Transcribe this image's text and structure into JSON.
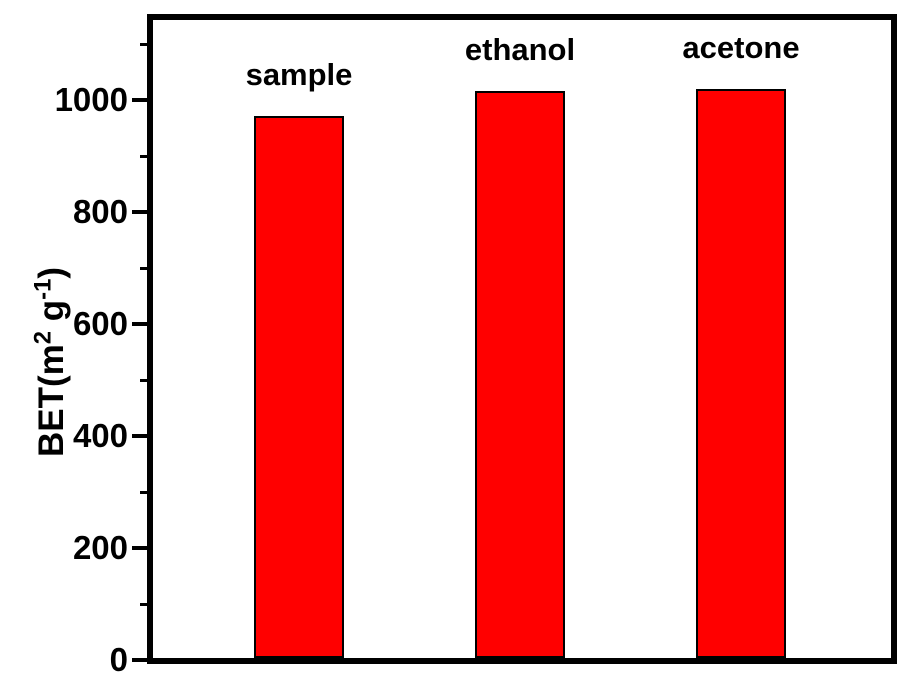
{
  "chart_data": {
    "type": "bar",
    "title": "",
    "xlabel": "",
    "ylabel": "BET(m2 g-1)",
    "ylabel_parts": [
      {
        "text": "BET(m",
        "sup": false
      },
      {
        "text": "2",
        "sup": true
      },
      {
        "text": " g",
        "sup": false
      },
      {
        "text": "-1",
        "sup": true
      },
      {
        "text": ")",
        "sup": false
      }
    ],
    "categories": [
      "sample",
      "ethanol",
      "acetone"
    ],
    "values": [
      968,
      1012,
      1016
    ],
    "bar_labels_above": true,
    "ylim": [
      0,
      1150
    ],
    "y_major_ticks": [
      0,
      200,
      400,
      600,
      800,
      1000
    ],
    "y_minor_ticks": [
      100,
      300,
      500,
      700,
      900,
      1100
    ],
    "grid": false,
    "legend": "none",
    "colors": {
      "bar_fill": "#ff0000",
      "bar_border": "#000000",
      "frame": "#000000",
      "text": "#000000",
      "background": "#ffffff"
    }
  }
}
